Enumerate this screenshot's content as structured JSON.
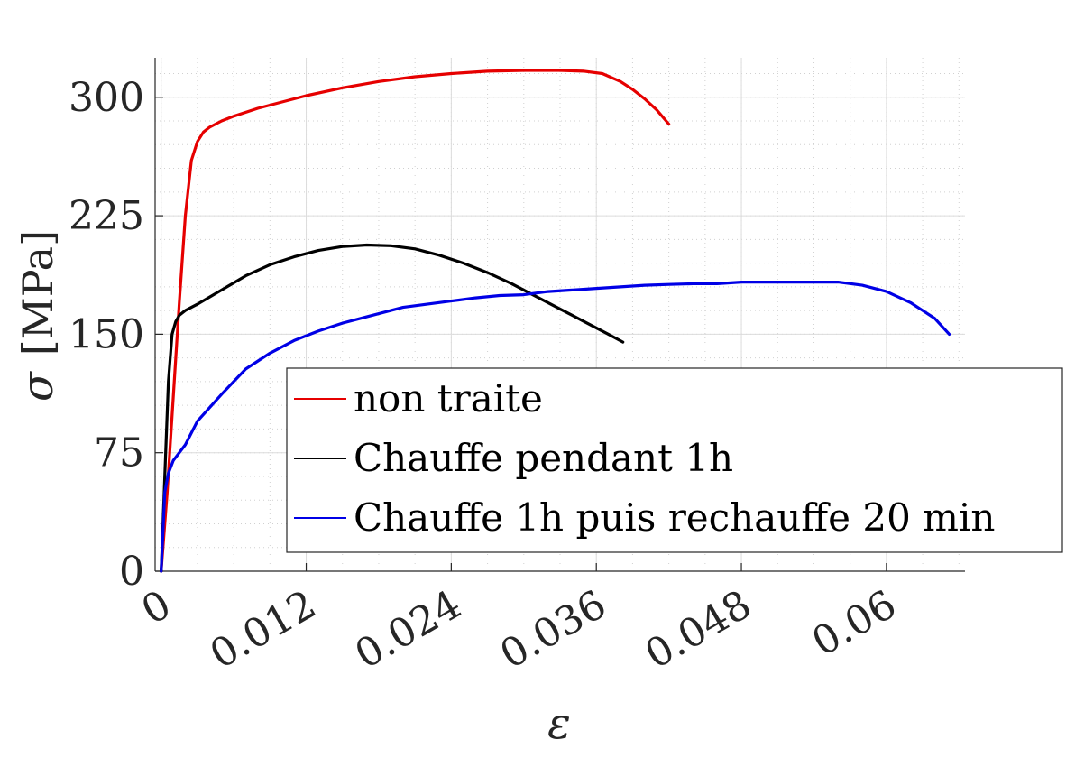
{
  "chart_data": {
    "type": "line",
    "xlabel": "ε",
    "ylabel_symbol": "σ",
    "ylabel_unit": "[MPa]",
    "xlim": [
      -0.0005,
      0.0665
    ],
    "ylim": [
      0,
      325
    ],
    "x_ticks": [
      0,
      0.012,
      0.024,
      0.036,
      0.048,
      0.06
    ],
    "x_tick_labels": [
      "0",
      "0.012",
      "0.024",
      "0.036",
      "0.048",
      "0.06"
    ],
    "y_ticks": [
      0,
      75,
      150,
      225,
      300
    ],
    "y_tick_labels": [
      "0",
      "75",
      "150",
      "225",
      "300"
    ],
    "grid": true,
    "minor_grid": true,
    "legend_position": "bottom-right",
    "series": [
      {
        "name": "non traite",
        "color": "#e60000",
        "x": [
          0.0,
          0.0005,
          0.001,
          0.0015,
          0.002,
          0.0025,
          0.003,
          0.0035,
          0.004,
          0.005,
          0.006,
          0.008,
          0.01,
          0.012,
          0.015,
          0.018,
          0.021,
          0.024,
          0.027,
          0.03,
          0.033,
          0.035,
          0.0365,
          0.038,
          0.039,
          0.04,
          0.041,
          0.042
        ],
        "y": [
          0,
          50,
          110,
          170,
          225,
          260,
          272,
          278,
          281,
          285,
          288,
          293,
          297,
          301,
          306,
          310,
          313,
          315,
          316.5,
          317,
          317,
          316.5,
          315,
          310,
          305,
          299,
          292,
          283
        ]
      },
      {
        "name": "Chauffe pendant 1h",
        "color": "#000000",
        "x": [
          0.0,
          0.0003,
          0.0006,
          0.0009,
          0.0012,
          0.0015,
          0.002,
          0.003,
          0.005,
          0.007,
          0.009,
          0.011,
          0.013,
          0.015,
          0.017,
          0.019,
          0.021,
          0.023,
          0.025,
          0.027,
          0.029,
          0.031,
          0.033,
          0.035,
          0.037,
          0.0382
        ],
        "y": [
          0,
          60,
          120,
          150,
          158,
          162,
          165,
          169,
          178,
          187,
          194,
          199,
          203,
          205.5,
          206.5,
          206,
          204,
          200,
          195,
          189,
          182,
          174,
          166,
          158,
          150,
          145
        ]
      },
      {
        "name": "Chauffe 1h puis rechauffe 20 min",
        "color": "#0000e6",
        "x": [
          0.0,
          0.0003,
          0.0006,
          0.001,
          0.002,
          0.003,
          0.005,
          0.007,
          0.009,
          0.011,
          0.013,
          0.015,
          0.017,
          0.019,
          0.02,
          0.022,
          0.024,
          0.026,
          0.028,
          0.03,
          0.032,
          0.034,
          0.036,
          0.038,
          0.04,
          0.042,
          0.044,
          0.046,
          0.048,
          0.05,
          0.052,
          0.054,
          0.056,
          0.058,
          0.06,
          0.062,
          0.064,
          0.0652
        ],
        "y": [
          0,
          50,
          62,
          70,
          80,
          95,
          112,
          128,
          138,
          146,
          152,
          157,
          161,
          165,
          167,
          169,
          171,
          173,
          174.5,
          175,
          177,
          178,
          179,
          180,
          181,
          181.5,
          182,
          182,
          183,
          183,
          183,
          183,
          183,
          181,
          177,
          170,
          160,
          150
        ]
      }
    ]
  }
}
